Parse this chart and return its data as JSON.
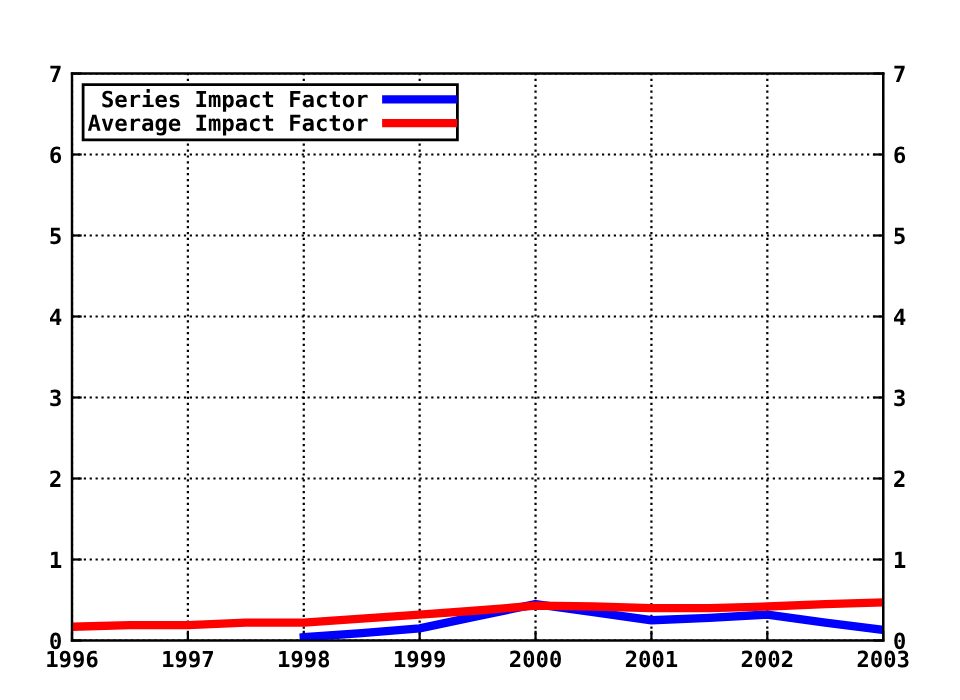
{
  "chart_data": {
    "type": "line",
    "xlim": [
      1996,
      2003
    ],
    "xticks": [
      1996,
      1997,
      1998,
      1999,
      2000,
      2001,
      2002,
      2003
    ],
    "ylim": [
      0,
      7
    ],
    "yticks": [
      0,
      1,
      2,
      3,
      4,
      5,
      6,
      7
    ],
    "y2lim": [
      0,
      7
    ],
    "y2ticks": [
      0,
      1,
      2,
      3,
      4,
      5,
      6,
      7
    ],
    "grid": true,
    "legend": "top left",
    "marker": "none",
    "line_style": "solid",
    "series": [
      {
        "name": "Series Impact Factor",
        "color": "#0000ff",
        "x": [
          1998,
          1998.5,
          1999,
          1999.5,
          2000,
          2000.5,
          2001,
          2001.5,
          2002,
          2002.5,
          2003
        ],
        "values": [
          0.04,
          0.09,
          0.15,
          0.3,
          0.45,
          0.35,
          0.25,
          0.28,
          0.32,
          0.22,
          0.13
        ]
      },
      {
        "name": "Average Impact Factor",
        "color": "#ff0000",
        "x": [
          1996,
          1996.5,
          1997,
          1997.5,
          1998,
          1998.5,
          1999,
          1999.5,
          2000,
          2000.5,
          2001,
          2001.5,
          2002,
          2002.5,
          2003
        ],
        "values": [
          0.17,
          0.19,
          0.19,
          0.22,
          0.22,
          0.27,
          0.32,
          0.37,
          0.43,
          0.42,
          0.4,
          0.4,
          0.42,
          0.45,
          0.47
        ]
      }
    ]
  }
}
